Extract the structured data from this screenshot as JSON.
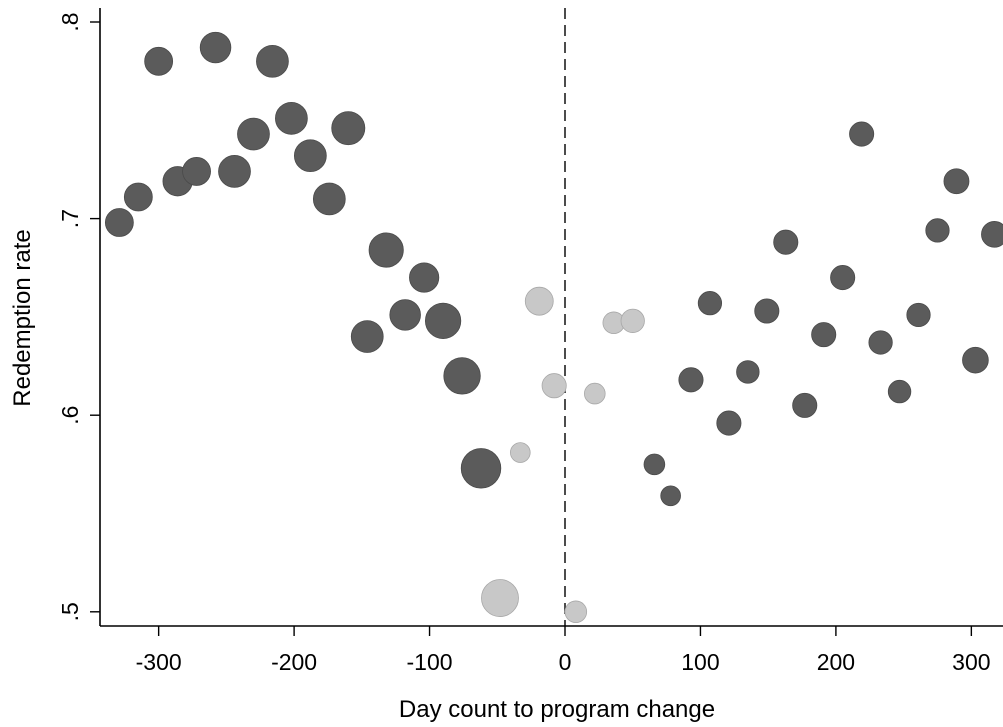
{
  "chart_data": {
    "type": "scatter",
    "title": "",
    "xlabel": "Day count to program change",
    "ylabel": "Redemption rate",
    "xlim": [
      -340,
      320
    ],
    "ylim": [
      0.495,
      0.81
    ],
    "x_ticks": [
      -300,
      -200,
      -100,
      0,
      100,
      200,
      300
    ],
    "x_tick_labels": [
      "-300",
      "-200",
      "-100",
      "0",
      "100",
      "200",
      "300"
    ],
    "y_ticks": [
      0.5,
      0.6,
      0.7,
      0.8
    ],
    "y_tick_labels": [
      ".5",
      ".6",
      ".7",
      ".8"
    ],
    "vertical_reference_line": {
      "x": 0,
      "style": "dashed"
    },
    "grid": false,
    "legend": "none",
    "marker_size_encodes": "relative weight (bubble area)",
    "colors": {
      "dark": "#5b5b5b",
      "light": "#c8c8c8"
    },
    "series": [
      {
        "color": "#5b5b5b",
        "points": [
          {
            "x": -329,
            "y": 0.698,
            "s": 1.0
          },
          {
            "x": -315,
            "y": 0.711,
            "s": 1.0
          },
          {
            "x": -300,
            "y": 0.78,
            "s": 1.0
          },
          {
            "x": -286,
            "y": 0.719,
            "s": 1.1
          },
          {
            "x": -272,
            "y": 0.724,
            "s": 1.0
          },
          {
            "x": -258,
            "y": 0.787,
            "s": 1.2
          },
          {
            "x": -244,
            "y": 0.724,
            "s": 1.3
          },
          {
            "x": -230,
            "y": 0.743,
            "s": 1.3
          },
          {
            "x": -216,
            "y": 0.78,
            "s": 1.3
          },
          {
            "x": -202,
            "y": 0.751,
            "s": 1.3
          },
          {
            "x": -188,
            "y": 0.732,
            "s": 1.3
          },
          {
            "x": -174,
            "y": 0.71,
            "s": 1.3
          },
          {
            "x": -160,
            "y": 0.746,
            "s": 1.4
          },
          {
            "x": -146,
            "y": 0.64,
            "s": 1.3
          },
          {
            "x": -132,
            "y": 0.684,
            "s": 1.5
          },
          {
            "x": -118,
            "y": 0.651,
            "s": 1.2
          },
          {
            "x": -104,
            "y": 0.67,
            "s": 1.1
          },
          {
            "x": -90,
            "y": 0.648,
            "s": 1.6
          },
          {
            "x": -76,
            "y": 0.62,
            "s": 1.7
          },
          {
            "x": -62,
            "y": 0.573,
            "s": 2.0
          },
          {
            "x": 66,
            "y": 0.575,
            "s": 0.55
          },
          {
            "x": 78,
            "y": 0.559,
            "s": 0.5
          },
          {
            "x": 93,
            "y": 0.618,
            "s": 0.75
          },
          {
            "x": 107,
            "y": 0.657,
            "s": 0.7
          },
          {
            "x": 121,
            "y": 0.596,
            "s": 0.75
          },
          {
            "x": 135,
            "y": 0.622,
            "s": 0.65
          },
          {
            "x": 149,
            "y": 0.653,
            "s": 0.75
          },
          {
            "x": 163,
            "y": 0.688,
            "s": 0.75
          },
          {
            "x": 177,
            "y": 0.605,
            "s": 0.75
          },
          {
            "x": 191,
            "y": 0.641,
            "s": 0.75
          },
          {
            "x": 205,
            "y": 0.67,
            "s": 0.75
          },
          {
            "x": 219,
            "y": 0.743,
            "s": 0.75
          },
          {
            "x": 233,
            "y": 0.637,
            "s": 0.7
          },
          {
            "x": 247,
            "y": 0.612,
            "s": 0.65
          },
          {
            "x": 261,
            "y": 0.651,
            "s": 0.7
          },
          {
            "x": 275,
            "y": 0.694,
            "s": 0.7
          },
          {
            "x": 289,
            "y": 0.719,
            "s": 0.8
          },
          {
            "x": 303,
            "y": 0.628,
            "s": 0.85
          },
          {
            "x": 317,
            "y": 0.692,
            "s": 0.85
          }
        ]
      },
      {
        "color": "#c8c8c8",
        "points": [
          {
            "x": -48,
            "y": 0.507,
            "s": 1.75
          },
          {
            "x": -33,
            "y": 0.581,
            "s": 0.5
          },
          {
            "x": -19,
            "y": 0.658,
            "s": 1.0
          },
          {
            "x": -8,
            "y": 0.615,
            "s": 0.75
          },
          {
            "x": 8,
            "y": 0.5,
            "s": 0.6
          },
          {
            "x": 22,
            "y": 0.611,
            "s": 0.55
          },
          {
            "x": 36,
            "y": 0.647,
            "s": 0.6
          },
          {
            "x": 50,
            "y": 0.648,
            "s": 0.7
          }
        ]
      }
    ]
  }
}
